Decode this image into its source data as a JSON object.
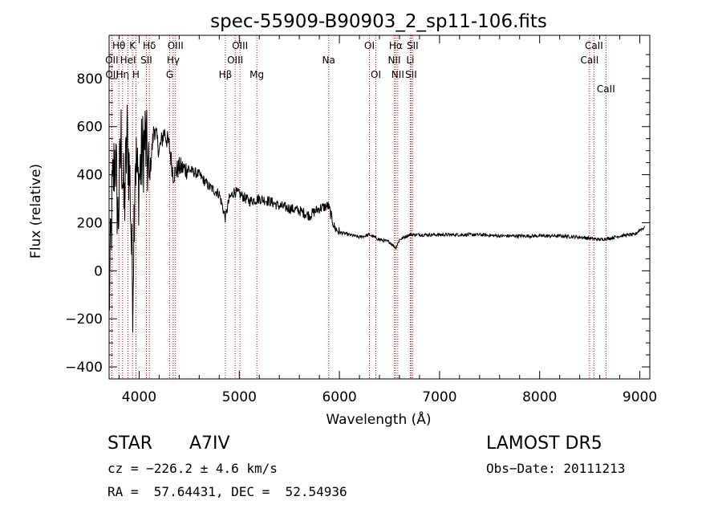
{
  "chart_data": {
    "type": "line",
    "title": "spec-55909-B90903_2_sp11-106.fits",
    "xlabel": "Wavelength (Å)",
    "ylabel": "Flux (relative)",
    "xlim": [
      3700,
      9100
    ],
    "ylim": [
      -450,
      980
    ],
    "xticks": [
      4000,
      5000,
      6000,
      7000,
      8000,
      9000
    ],
    "yticks": [
      -400,
      -200,
      0,
      200,
      400,
      600,
      800
    ],
    "grid": false,
    "legend": "none",
    "line_color": "#000000",
    "marker_color": "#cc0000",
    "spectrum_anchor_points": {
      "x": [
        3700,
        3730,
        3760,
        3790,
        3820,
        3850,
        3880,
        3910,
        3935,
        3960,
        3990,
        4020,
        4060,
        4100,
        4150,
        4200,
        4250,
        4300,
        4340,
        4400,
        4500,
        4600,
        4700,
        4800,
        4861,
        4900,
        4950,
        5000,
        5100,
        5200,
        5300,
        5400,
        5500,
        5600,
        5700,
        5800,
        5890,
        5950,
        6000,
        6100,
        6200,
        6300,
        6400,
        6500,
        6563,
        6600,
        6700,
        6800,
        7000,
        7200,
        7400,
        7600,
        7800,
        8000,
        8200,
        8400,
        8500,
        8600,
        8700,
        8800,
        8900,
        8950,
        9000,
        9050
      ],
      "y": [
        -150,
        300,
        500,
        200,
        550,
        250,
        560,
        350,
        -100,
        500,
        350,
        450,
        550,
        380,
        600,
        500,
        580,
        520,
        400,
        430,
        420,
        400,
        350,
        320,
        220,
        300,
        330,
        320,
        290,
        300,
        290,
        270,
        260,
        250,
        230,
        260,
        270,
        180,
        160,
        150,
        140,
        150,
        130,
        120,
        95,
        130,
        150,
        150,
        150,
        150,
        150,
        145,
        145,
        145,
        145,
        140,
        135,
        130,
        135,
        145,
        150,
        150,
        170,
        180
      ]
    },
    "line_markers": [
      {
        "label": "Hθ",
        "x": 3798
      },
      {
        "label": "K",
        "x": 3934
      },
      {
        "label": "Hδ",
        "x": 4102
      },
      {
        "label": "OIII",
        "x": 4363
      },
      {
        "label": "OIII",
        "x": 5007
      },
      {
        "label": "OI",
        "x": 6300
      },
      {
        "label": "Hα",
        "x": 6563
      },
      {
        "label": "SII",
        "x": 6731
      },
      {
        "label": "CaII",
        "x": 8542
      },
      {
        "label": "OII",
        "x": 3727
      },
      {
        "label": "HeI",
        "x": 3889
      },
      {
        "label": "SII",
        "x": 4072
      },
      {
        "label": "Hγ",
        "x": 4340
      },
      {
        "label": "OIII",
        "x": 4959
      },
      {
        "label": "Na",
        "x": 5893
      },
      {
        "label": "NII",
        "x": 6548
      },
      {
        "label": "Li",
        "x": 6708
      },
      {
        "label": "CaII",
        "x": 8498
      },
      {
        "label": "OII",
        "x": 3729
      },
      {
        "label": "Hη",
        "x": 3835
      },
      {
        "label": "H",
        "x": 3968
      },
      {
        "label": "G",
        "x": 4305
      },
      {
        "label": "Hβ",
        "x": 4861
      },
      {
        "label": "Mg",
        "x": 5175
      },
      {
        "label": "OI",
        "x": 6364
      },
      {
        "label": "NII",
        "x": 6583
      },
      {
        "label": "SII",
        "x": 6716
      },
      {
        "label": "CaII",
        "x": 8662
      }
    ]
  },
  "info": {
    "class": "STAR",
    "subclass": "A7IV",
    "survey": "LAMOST DR5",
    "cz": "cz = −226.2 ± 4.6 km/s",
    "obs_date": "Obs−Date: 20111213",
    "radec": "RA =  57.64431, DEC =  52.54936"
  }
}
